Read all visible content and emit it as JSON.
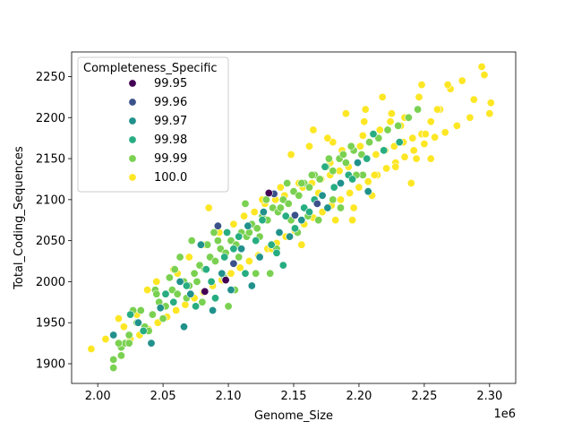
{
  "chart_data": {
    "type": "scatter",
    "xlabel": "Genome_Size",
    "ylabel": "Total_Coding_Sequences",
    "x_offset_label": "1e6",
    "x_scale_factor": 1000000,
    "xlim": [
      1980000,
      2320000
    ],
    "ylim": [
      1876,
      2280
    ],
    "x_ticks": [
      2000000,
      2050000,
      2100000,
      2150000,
      2200000,
      2250000,
      2300000
    ],
    "x_tick_labels": [
      "2.00",
      "2.05",
      "2.10",
      "2.15",
      "2.20",
      "2.25",
      "2.30"
    ],
    "y_ticks": [
      1900,
      1950,
      2000,
      2050,
      2100,
      2150,
      2200,
      2250
    ],
    "y_tick_labels": [
      "1900",
      "1950",
      "2000",
      "2050",
      "2100",
      "2150",
      "2200",
      "2250"
    ],
    "grid": false,
    "legend": {
      "title": "Completeness_Specific",
      "placement": "upper-left",
      "entries": [
        {
          "label": "99.95",
          "color": "#440154"
        },
        {
          "label": "99.96",
          "color": "#3b528b"
        },
        {
          "label": "99.97",
          "color": "#21918c"
        },
        {
          "label": "99.98",
          "color": "#27ad81"
        },
        {
          "label": "99.99",
          "color": "#7ad151"
        },
        {
          "label": "100.0",
          "color": "#fde725"
        }
      ]
    },
    "series": [
      {
        "name": "99.95",
        "color": "#440154",
        "x": [
          2131000,
          2098000,
          2082000
        ],
        "y": [
          2108,
          2002,
          1988
        ]
      },
      {
        "name": "99.96",
        "color": "#3b528b",
        "x": [
          2135000,
          2168000,
          2104000,
          2092000,
          2151000
        ],
        "y": [
          2107,
          2095,
          2022,
          2068,
          2081
        ]
      },
      {
        "name": "99.97",
        "color": "#21918c",
        "x": [
          2012000,
          2048000,
          2071000,
          2095000,
          2110000,
          2124000,
          2088000,
          2139000,
          2156000,
          2172000,
          2031000,
          2063000,
          2102000,
          2118000,
          2147000,
          2186000,
          2199000,
          2066000,
          2079000,
          2041000,
          2127000,
          2176000,
          2207000,
          2115000
        ],
        "y": [
          1935,
          1968,
          1985,
          2010,
          2040,
          2030,
          1965,
          2060,
          2075,
          2105,
          1950,
          2000,
          1990,
          1995,
          2055,
          2120,
          2145,
          1945,
          2045,
          1925,
          2085,
          2090,
          2110,
          2068
        ]
      },
      {
        "name": "99.98",
        "color": "#27ad81",
        "x": [
          2025000,
          2052000,
          2068000,
          2083000,
          2097000,
          2108000,
          2121000,
          2133000,
          2144000,
          2158000,
          2166000,
          2181000,
          2192000,
          2206000,
          2219000,
          2231000,
          2075000,
          2090000,
          2113000,
          2137000,
          2151000,
          2162000,
          2035000,
          2058000,
          2099000,
          2126000,
          2142000,
          2174000,
          2195000,
          2211000,
          2087000,
          2104000
        ],
        "y": [
          1960,
          1985,
          1995,
          2015,
          2030,
          2055,
          2050,
          2045,
          2080,
          2090,
          2100,
          2115,
          2130,
          2150,
          2160,
          2170,
          1970,
          1980,
          2010,
          2035,
          2065,
          2085,
          1940,
          1975,
          2060,
          2075,
          2020,
          2140,
          2125,
          2180,
          2000,
          2040
        ]
      },
      {
        "name": "99.99",
        "color": "#7ad151",
        "x": [
          2012000,
          2018000,
          2024000,
          2030000,
          2036000,
          2042000,
          2047000,
          2052000,
          2057000,
          2061000,
          2066000,
          2070000,
          2074000,
          2078000,
          2082000,
          2086000,
          2090000,
          2094000,
          2098000,
          2102000,
          2106000,
          2110000,
          2114000,
          2118000,
          2122000,
          2126000,
          2130000,
          2134000,
          2138000,
          2142000,
          2146000,
          2150000,
          2154000,
          2158000,
          2162000,
          2166000,
          2170000,
          2175000,
          2180000,
          2185000,
          2190000,
          2196000,
          2202000,
          2208000,
          2215000,
          2222000,
          2230000,
          2238000,
          2245000,
          2033000,
          2044000,
          2055000,
          2063000,
          2072000,
          2080000,
          2089000,
          2097000,
          2105000,
          2113000,
          2121000,
          2129000,
          2137000,
          2145000,
          2153000,
          2161000,
          2169000,
          2177000,
          2186000,
          2194000,
          2203000,
          2021000,
          2039000,
          2050000,
          2068000,
          2084000,
          2100000,
          2116000,
          2132000,
          2148000,
          2164000,
          2180000,
          2198000,
          2016000,
          2027000,
          2045000,
          2059000,
          2076000,
          2092000,
          2108000,
          2124000,
          2140000,
          2156000,
          2172000,
          2188000,
          2012000,
          2018000,
          2024000
        ],
        "y": [
          1905,
          1920,
          1935,
          1950,
          1945,
          1960,
          1975,
          1970,
          1990,
          1985,
          2000,
          1995,
          2010,
          2020,
          2015,
          2030,
          2025,
          2040,
          2035,
          2050,
          2045,
          2060,
          2055,
          2070,
          2065,
          2080,
          2075,
          2090,
          2085,
          2100,
          2095,
          2110,
          2105,
          2120,
          2115,
          2130,
          2125,
          2140,
          2135,
          2150,
          2145,
          2160,
          2155,
          2170,
          2175,
          2185,
          2190,
          2200,
          2210,
          1965,
          1990,
          2005,
          2030,
          2050,
          1975,
          2060,
          2005,
          1990,
          2095,
          2010,
          2100,
          2040,
          2120,
          2060,
          2080,
          2075,
          2150,
          2090,
          2165,
          2130,
          1925,
          1940,
          1955,
          1980,
          2045,
          1970,
          2060,
          2010,
          2075,
          2130,
          2100,
          2130,
          1925,
          1965,
          1985,
          2015,
          2000,
          2050,
          2030,
          2055,
          2090,
          2120,
          2105,
          2155,
          1895,
          1910,
          1925
        ]
      },
      {
        "name": "100.0",
        "color": "#fde725",
        "x": [
          1995000,
          2006000,
          2016000,
          2030000,
          2045000,
          2058000,
          2070000,
          2082000,
          2093000,
          2104000,
          2112000,
          2120000,
          2128000,
          2136000,
          2143000,
          2150000,
          2157000,
          2164000,
          2171000,
          2178000,
          2185000,
          2192000,
          2199000,
          2206000,
          2213000,
          2220000,
          2227000,
          2234000,
          2241000,
          2248000,
          2255000,
          2262000,
          2270000,
          2279000,
          2288000,
          2296000,
          2301000,
          2300000,
          2294000,
          2285000,
          2275000,
          2266000,
          2258000,
          2250000,
          2242000,
          2235000,
          2228000,
          2221000,
          2214000,
          2207000,
          2200000,
          2193000,
          2186000,
          2179000,
          2172000,
          2165000,
          2158000,
          2151000,
          2144000,
          2137000,
          2130000,
          2123000,
          2116000,
          2109000,
          2102000,
          2095000,
          2088000,
          2081000,
          2074000,
          2067000,
          2060000,
          2053000,
          2046000,
          2039000,
          2032000,
          2025000,
          2020000,
          2038000,
          2061000,
          2085000,
          2110000,
          2133000,
          2156000,
          2178000,
          2201000,
          2224000,
          2246000,
          2268000,
          2195000,
          2210000,
          2180000,
          2165000,
          2240000,
          2255000,
          2225000,
          2205000,
          2218000,
          2232000,
          2248000,
          2260000,
          2148000,
          2162000,
          2176000,
          2190000,
          2204000,
          2126000,
          2140000,
          2182000,
          2196000,
          2212000,
          2228000,
          2244000,
          2169000,
          2154000,
          2187000,
          2203000,
          2216000,
          2235000,
          2251000
        ],
        "y": [
          1918,
          1930,
          1955,
          1960,
          2000,
          2015,
          2030,
          2045,
          2060,
          2070,
          2080,
          2085,
          2095,
          2100,
          2105,
          2110,
          2115,
          2120,
          2125,
          2130,
          2135,
          2140,
          2145,
          2150,
          2155,
          2160,
          2165,
          2170,
          2175,
          2180,
          2195,
          2210,
          2235,
          2245,
          2222,
          2252,
          2218,
          2205,
          2262,
          2200,
          2190,
          2182,
          2176,
          2168,
          2160,
          2152,
          2145,
          2138,
          2130,
          2122,
          2115,
          2108,
          2100,
          2093,
          2085,
          2078,
          2070,
          2062,
          2055,
          2047,
          2040,
          2032,
          2025,
          2017,
          2010,
          2002,
          1995,
          1987,
          1980,
          1972,
          1965,
          1957,
          1950,
          1942,
          1935,
          1930,
          1945,
          1990,
          2010,
          2090,
          2060,
          2040,
          2045,
          2145,
          2165,
          2195,
          2225,
          2240,
          2075,
          2105,
          2170,
          2185,
          2120,
          2150,
          2205,
          2210,
          2225,
          2190,
          2240,
          2210,
          2155,
          2165,
          2175,
          2205,
          2195,
          2100,
          2115,
          2075,
          2090,
          2130,
          2140,
          2150,
          2108,
          2120,
          2160,
          2178,
          2185,
          2200,
          2180
        ]
      }
    ]
  }
}
